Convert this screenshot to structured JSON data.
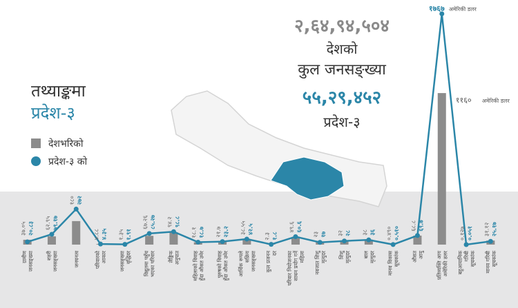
{
  "header": {
    "title": "तथ्याङ्कमा",
    "subtitle": "प्रदेश-३"
  },
  "population": {
    "national": "२,६४,९४,५०४",
    "label": [
      "देशको",
      "कुल जनसङ्ख्या"
    ],
    "province": "५५,२९,४५२",
    "province_name": "प्रदेश-३"
  },
  "chart_data": {
    "type": "bar_line",
    "categories": [
      [
        "ग्रामीण",
        "जनसङ्ख्या"
      ],
      [
        "शहरी",
        "जनसङ्ख्या"
      ],
      [
        "जनघनत्व"
      ],
      [
        "परिवारको",
        "आकार"
      ],
      [
        "जनसङ्ख्या",
        "वृद्धिदर"
      ],
      [
        "विद्युतमा पहुँच",
        "भएका परिवार"
      ],
      [
        "लैङ्गिक",
        "अनुपात"
      ],
      [
        "महिलाको विवाह",
        "हुँदा औसत उमेर"
      ],
      [
        "पुरुषको विवाह",
        "हुँदा औसत उमेर"
      ],
      [
        "आर्थिक रूपले",
        "सक्रिय",
        "जनसङ्ख्या"
      ],
      [
        "कुल प्रजनन",
        "दर"
      ],
      [
        "परिवार नियोजनका",
        "साधन प्रयोग गर्ने",
        "महिला"
      ],
      [
        "नवजात शिशु",
        "मृत्युदर"
      ],
      [
        "शिशु",
        "मृत्युदर"
      ],
      [
        "बाल",
        "मृत्युदर"
      ],
      [
        "मानव विकास",
        "सूचकांक"
      ],
      [
        "औसत",
        "आयु"
      ],
      [
        "प्रतिव्यक्ति आय",
        "अमेरिकी डलर"
      ],
      [
        "बहुआयामिक",
        "गरिबी",
        "सूचकांक"
      ],
      [
        "मानव गरिबी",
        "सूचकांक"
      ]
    ],
    "series": [
      {
        "name": "देशभरिको",
        "type": "bar",
        "color": "#8c8c8c",
        "unit_label": "अमेरिकी डलर",
        "values": [
          37.05,
          62.95,
          180,
          4.88,
          1.35,
          67.26,
          94.2,
          18.1,
          21.7,
          38.55,
          2.3,
          49.6,
          23,
          32,
          38,
          0.49,
          68.8,
          1160,
          0.127,
          31.12
        ],
        "value_labels": [
          "३७.०५",
          "६२.९५",
          "१८०",
          "४.८८",
          "१.३५",
          "६७.२६",
          "९४.२",
          "१८.१",
          "२१.७",
          "३८.५५",
          "२.३",
          "४९.६",
          "२३",
          "३२",
          "३८",
          "०.४९०",
          "६८.८",
          "११६०",
          "०.१२७",
          "३१.१२"
        ]
      },
      {
        "name": "प्रदेश-३ को",
        "type": "line",
        "color": "#2b86a8",
        "unit_label": "अमेरिकी डलर",
        "values": [
          20.83,
          79.17,
          272,
          4.35,
          1.91,
          85.27,
          98.8,
          18.7,
          23.2,
          42.5,
          1.8,
          60.6,
          17,
          28,
          36,
          0.51,
          69.7,
          1767,
          0.051,
          25.17
        ],
        "value_labels": [
          "२०.८३",
          "७९.१७",
          "२७२",
          "४.३५",
          "१.९१",
          "८५.२७",
          "९८.८",
          "१८.७",
          "२३.२",
          "४२.५",
          "१.८",
          "६०.६",
          "१७",
          "२८",
          "३६",
          "०.५१०",
          "६९.७",
          "१७६७",
          "०.०५१",
          "२५.१७"
        ]
      }
    ]
  }
}
